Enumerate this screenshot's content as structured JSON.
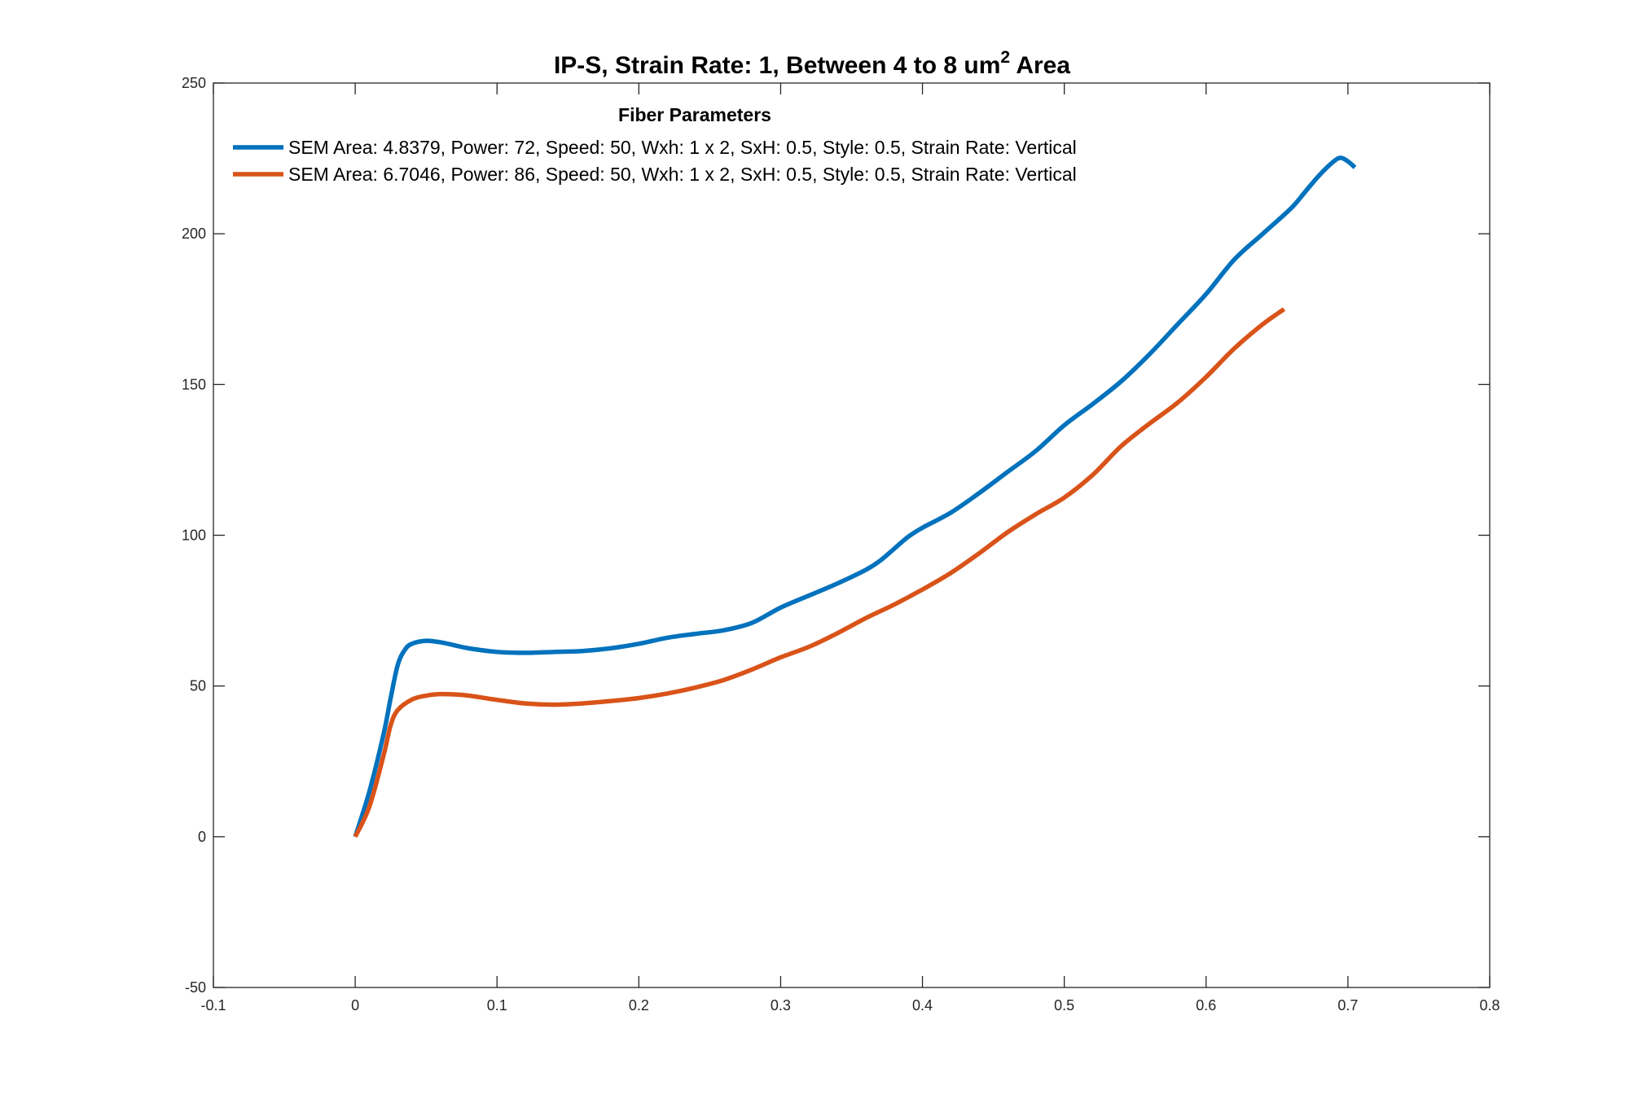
{
  "chart_data": {
    "type": "line",
    "title": {
      "main": "IP-S, Strain Rate: 1, Between 4 to 8 um",
      "superscript": "2",
      "suffix": " Area"
    },
    "xlabel": "",
    "ylabel": "",
    "xlim": [
      -0.1,
      0.8
    ],
    "ylim": [
      -50,
      250
    ],
    "x_ticks": [
      -0.1,
      0,
      0.1,
      0.2,
      0.3,
      0.4,
      0.5,
      0.6,
      0.7,
      0.8
    ],
    "x_tick_labels": [
      "-0.1",
      "0",
      "0.1",
      "0.2",
      "0.3",
      "0.4",
      "0.5",
      "0.6",
      "0.7",
      "0.8"
    ],
    "y_ticks": [
      -50,
      0,
      50,
      100,
      150,
      200,
      250
    ],
    "y_tick_labels": [
      "-50",
      "0",
      "50",
      "100",
      "150",
      "200",
      "250"
    ],
    "grid": false,
    "legend": {
      "title": "Fiber Parameters",
      "placement": "top-left"
    },
    "series": [
      {
        "name": "SEM Area: 4.8379, Power: 72, Speed: 50, Wxh: 1 x 2, SxH: 0.5, Style: 0.5, Strain Rate: Vertical",
        "color": "#0072BD",
        "points": [
          [
            0,
            0
          ],
          [
            0.01,
            15
          ],
          [
            0.02,
            34
          ],
          [
            0.025,
            46
          ],
          [
            0.03,
            57
          ],
          [
            0.035,
            62
          ],
          [
            0.04,
            64
          ],
          [
            0.05,
            65
          ],
          [
            0.06,
            64.5
          ],
          [
            0.07,
            63.5
          ],
          [
            0.08,
            62.5
          ],
          [
            0.1,
            61.3
          ],
          [
            0.12,
            61
          ],
          [
            0.14,
            61.3
          ],
          [
            0.16,
            61.6
          ],
          [
            0.18,
            62.5
          ],
          [
            0.2,
            64
          ],
          [
            0.22,
            66
          ],
          [
            0.24,
            67.3
          ],
          [
            0.26,
            68.5
          ],
          [
            0.28,
            71
          ],
          [
            0.3,
            76
          ],
          [
            0.32,
            80
          ],
          [
            0.34,
            84
          ],
          [
            0.36,
            88.5
          ],
          [
            0.37,
            91.5
          ],
          [
            0.38,
            95.5
          ],
          [
            0.39,
            99.5
          ],
          [
            0.4,
            102.5
          ],
          [
            0.42,
            107.5
          ],
          [
            0.44,
            114
          ],
          [
            0.46,
            121
          ],
          [
            0.48,
            128
          ],
          [
            0.5,
            136.5
          ],
          [
            0.52,
            143.5
          ],
          [
            0.54,
            151
          ],
          [
            0.56,
            160
          ],
          [
            0.58,
            170
          ],
          [
            0.6,
            180
          ],
          [
            0.62,
            191.5
          ],
          [
            0.64,
            200
          ],
          [
            0.66,
            208.5
          ],
          [
            0.67,
            214
          ],
          [
            0.68,
            219.5
          ],
          [
            0.69,
            224
          ],
          [
            0.695,
            225.2
          ],
          [
            0.7,
            224
          ],
          [
            0.705,
            222
          ]
        ]
      },
      {
        "name": "SEM Area: 6.7046, Power: 86, Speed: 50, Wxh: 1 x 2, SxH: 0.5, Style: 0.5, Strain Rate: Vertical",
        "color": "#D95319",
        "points": [
          [
            0,
            0
          ],
          [
            0.01,
            10
          ],
          [
            0.02,
            27
          ],
          [
            0.025,
            37
          ],
          [
            0.03,
            42
          ],
          [
            0.04,
            45.5
          ],
          [
            0.05,
            46.8
          ],
          [
            0.06,
            47.3
          ],
          [
            0.07,
            47.2
          ],
          [
            0.08,
            46.8
          ],
          [
            0.1,
            45.4
          ],
          [
            0.12,
            44.2
          ],
          [
            0.14,
            43.8
          ],
          [
            0.16,
            44.2
          ],
          [
            0.18,
            45
          ],
          [
            0.2,
            46
          ],
          [
            0.22,
            47.5
          ],
          [
            0.24,
            49.5
          ],
          [
            0.26,
            52
          ],
          [
            0.28,
            55.5
          ],
          [
            0.3,
            59.5
          ],
          [
            0.32,
            63
          ],
          [
            0.34,
            67.5
          ],
          [
            0.36,
            72.5
          ],
          [
            0.38,
            77
          ],
          [
            0.4,
            82
          ],
          [
            0.42,
            87.5
          ],
          [
            0.44,
            94
          ],
          [
            0.46,
            101
          ],
          [
            0.48,
            107
          ],
          [
            0.5,
            112.5
          ],
          [
            0.52,
            120
          ],
          [
            0.54,
            129.5
          ],
          [
            0.56,
            137
          ],
          [
            0.58,
            144
          ],
          [
            0.6,
            152.5
          ],
          [
            0.62,
            162
          ],
          [
            0.64,
            170
          ],
          [
            0.655,
            175
          ]
        ]
      }
    ]
  }
}
